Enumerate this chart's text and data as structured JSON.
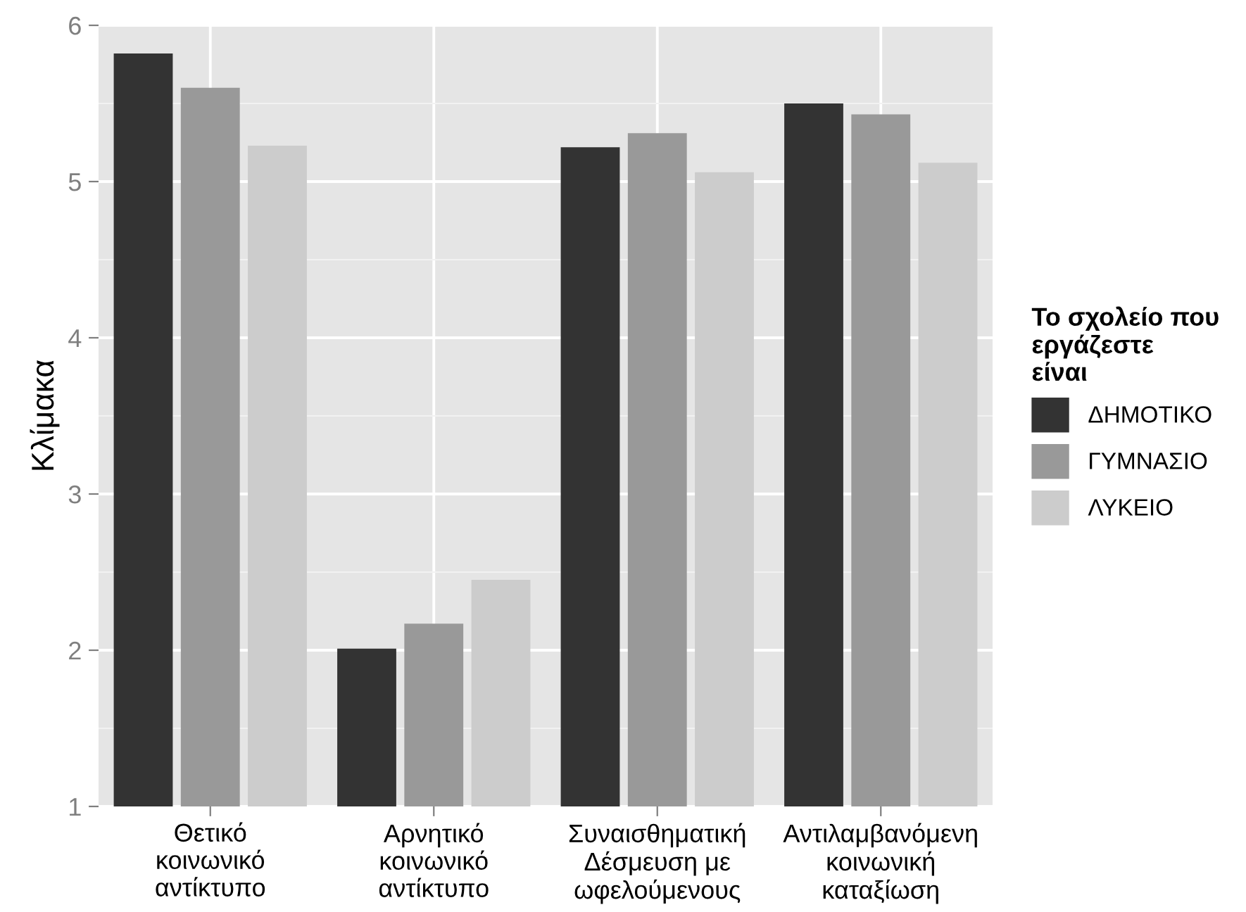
{
  "chart_data": {
    "type": "bar",
    "ylabel": "Κλίμακα",
    "legend_title": "Το σχολείο που\nεργάζεστε\nείναι",
    "categories": [
      "Θετικό\nκοινωνικό\nαντίκτυπο",
      "Αρνητικό\nκοινωνικό\nαντίκτυπο",
      "Συναισθηματική\nΔέσμευση με\nωφελούμενους",
      "Αντιλαμβανόμενη\nκοινωνική\nκαταξίωση"
    ],
    "series": [
      {
        "name": "ΔΗΜΟΤΙΚΟ",
        "color": "#333333",
        "values": [
          5.82,
          2.01,
          5.22,
          5.5
        ]
      },
      {
        "name": "ΓΥΜΝΑΣΙΟ",
        "color": "#999999",
        "values": [
          5.6,
          2.17,
          5.31,
          5.43
        ]
      },
      {
        "name": "ΛΥΚΕΙΟ",
        "color": "#cccccc",
        "values": [
          5.23,
          2.45,
          5.06,
          5.12
        ]
      }
    ],
    "ylim": [
      1,
      6
    ],
    "yticks": [
      1,
      2,
      3,
      4,
      5,
      6
    ],
    "grid": true,
    "legend": "right"
  }
}
